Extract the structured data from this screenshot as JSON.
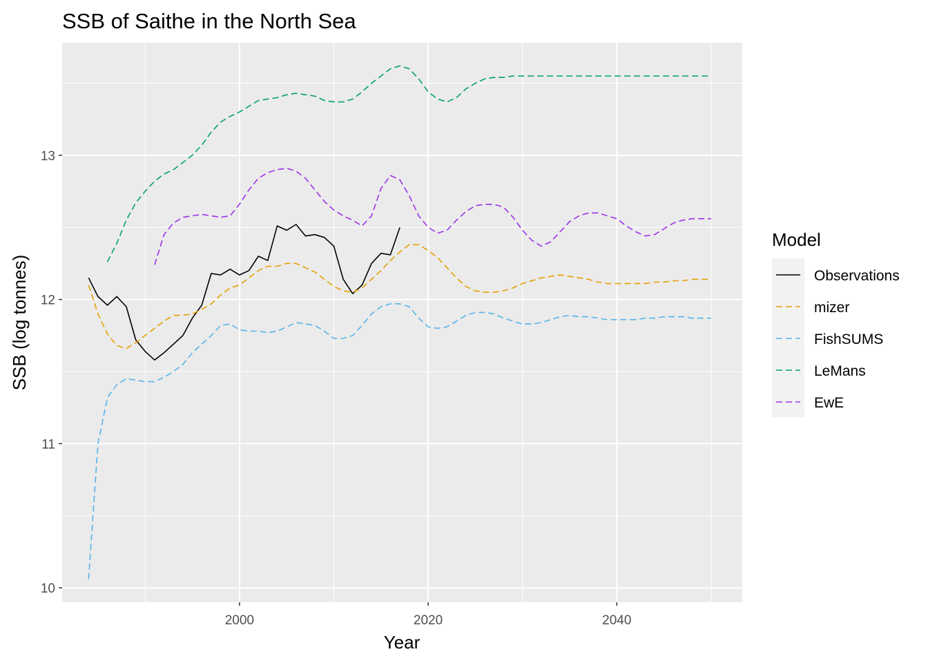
{
  "chart_data": {
    "type": "line",
    "title": "SSB of Saithe in the North Sea",
    "xlabel": "Year",
    "ylabel": "SSB (log tonnes)",
    "xlim": [
      1981.2,
      2053.3
    ],
    "ylim": [
      9.9,
      13.78
    ],
    "xticks": [
      2000,
      2020,
      2040
    ],
    "yticks": [
      10,
      11,
      12,
      13
    ],
    "grid": true,
    "legend": {
      "title": "Model",
      "position": "right"
    },
    "series": [
      {
        "name": "Observations",
        "color": "#000000",
        "dash": "solid",
        "x": [
          1984,
          1985,
          1986,
          1987,
          1988,
          1989,
          1990,
          1991,
          1992,
          1993,
          1994,
          1995,
          1996,
          1997,
          1998,
          1999,
          2000,
          2001,
          2002,
          2003,
          2004,
          2005,
          2006,
          2007,
          2008,
          2009,
          2010,
          2011,
          2012,
          2013,
          2014,
          2015,
          2016,
          2017
        ],
        "y": [
          12.15,
          12.02,
          11.96,
          12.02,
          11.95,
          11.72,
          11.64,
          11.58,
          11.63,
          11.69,
          11.75,
          11.87,
          11.96,
          12.18,
          12.17,
          12.21,
          12.17,
          12.2,
          12.3,
          12.27,
          12.51,
          12.48,
          12.52,
          12.44,
          12.45,
          12.43,
          12.37,
          12.14,
          12.04,
          12.1,
          12.25,
          12.32,
          12.31,
          12.5
        ]
      },
      {
        "name": "mizer",
        "color": "#E69F00",
        "dash": "dashed",
        "x": [
          1984,
          1985,
          1986,
          1987,
          1988,
          1989,
          1990,
          1991,
          1992,
          1993,
          1994,
          1995,
          1996,
          1997,
          1998,
          1999,
          2000,
          2001,
          2002,
          2003,
          2004,
          2005,
          2006,
          2007,
          2008,
          2009,
          2010,
          2011,
          2012,
          2013,
          2014,
          2015,
          2016,
          2017,
          2018,
          2019,
          2020,
          2021,
          2022,
          2023,
          2024,
          2025,
          2026,
          2027,
          2028,
          2029,
          2030,
          2031,
          2032,
          2033,
          2034,
          2035,
          2036,
          2037,
          2038,
          2039,
          2040,
          2041,
          2042,
          2043,
          2044,
          2045,
          2046,
          2047,
          2048,
          2049,
          2050
        ],
        "y": [
          12.1,
          11.9,
          11.76,
          11.68,
          11.66,
          11.7,
          11.75,
          11.8,
          11.85,
          11.89,
          11.89,
          11.9,
          11.93,
          11.97,
          12.03,
          12.08,
          12.1,
          12.15,
          12.2,
          12.23,
          12.23,
          12.25,
          12.25,
          12.22,
          12.19,
          12.14,
          12.09,
          12.06,
          12.05,
          12.08,
          12.14,
          12.2,
          12.27,
          12.33,
          12.38,
          12.38,
          12.34,
          12.29,
          12.22,
          12.15,
          12.09,
          12.06,
          12.05,
          12.05,
          12.06,
          12.08,
          12.11,
          12.13,
          12.15,
          12.16,
          12.17,
          12.16,
          12.15,
          12.14,
          12.12,
          12.11,
          12.11,
          12.11,
          12.11,
          12.11,
          12.12,
          12.12,
          12.13,
          12.13,
          12.14,
          12.14,
          12.14
        ]
      },
      {
        "name": "FishSUMS",
        "color": "#56B4E9",
        "dash": "dashed",
        "x": [
          1984,
          1985,
          1986,
          1987,
          1988,
          1989,
          1990,
          1991,
          1992,
          1993,
          1994,
          1995,
          1996,
          1997,
          1998,
          1999,
          2000,
          2001,
          2002,
          2003,
          2004,
          2005,
          2006,
          2007,
          2008,
          2009,
          2010,
          2011,
          2012,
          2013,
          2014,
          2015,
          2016,
          2017,
          2018,
          2019,
          2020,
          2021,
          2022,
          2023,
          2024,
          2025,
          2026,
          2027,
          2028,
          2029,
          2030,
          2031,
          2032,
          2033,
          2034,
          2035,
          2036,
          2037,
          2038,
          2039,
          2040,
          2041,
          2042,
          2043,
          2044,
          2045,
          2046,
          2047,
          2048,
          2049,
          2050
        ],
        "y": [
          10.06,
          11.0,
          11.32,
          11.41,
          11.45,
          11.44,
          11.43,
          11.43,
          11.46,
          11.5,
          11.55,
          11.63,
          11.69,
          11.75,
          11.82,
          11.83,
          11.79,
          11.78,
          11.78,
          11.77,
          11.78,
          11.81,
          11.84,
          11.83,
          11.82,
          11.78,
          11.73,
          11.73,
          11.75,
          11.82,
          11.9,
          11.95,
          11.97,
          11.97,
          11.95,
          11.87,
          11.81,
          11.8,
          11.81,
          11.85,
          11.89,
          11.91,
          11.91,
          11.9,
          11.87,
          11.85,
          11.83,
          11.83,
          11.84,
          11.86,
          11.88,
          11.89,
          11.88,
          11.88,
          11.87,
          11.86,
          11.86,
          11.86,
          11.86,
          11.87,
          11.87,
          11.88,
          11.88,
          11.88,
          11.87,
          11.87,
          11.87
        ]
      },
      {
        "name": "LeMans",
        "color": "#009E73",
        "dash": "dashed",
        "x": [
          1986,
          1987,
          1988,
          1989,
          1990,
          1991,
          1992,
          1993,
          1994,
          1995,
          1996,
          1997,
          1998,
          1999,
          2000,
          2001,
          2002,
          2003,
          2004,
          2005,
          2006,
          2007,
          2008,
          2009,
          2010,
          2011,
          2012,
          2013,
          2014,
          2015,
          2016,
          2017,
          2018,
          2019,
          2020,
          2021,
          2022,
          2023,
          2024,
          2025,
          2026,
          2027,
          2028,
          2029,
          2030,
          2031,
          2032,
          2033,
          2034,
          2035,
          2036,
          2037,
          2038,
          2039,
          2040,
          2041,
          2042,
          2043,
          2044,
          2045,
          2046,
          2047,
          2048,
          2049,
          2050
        ],
        "y": [
          12.26,
          12.39,
          12.55,
          12.67,
          12.75,
          12.82,
          12.87,
          12.9,
          12.95,
          13.0,
          13.07,
          13.16,
          13.23,
          13.27,
          13.3,
          13.34,
          13.38,
          13.39,
          13.4,
          13.42,
          13.43,
          13.42,
          13.41,
          13.38,
          13.37,
          13.37,
          13.39,
          13.44,
          13.5,
          13.55,
          13.6,
          13.62,
          13.6,
          13.53,
          13.44,
          13.39,
          13.37,
          13.4,
          13.46,
          13.5,
          13.53,
          13.54,
          13.54,
          13.55,
          13.55,
          13.55,
          13.55,
          13.55,
          13.55,
          13.55,
          13.55,
          13.55,
          13.55,
          13.55,
          13.55,
          13.55,
          13.55,
          13.55,
          13.55,
          13.55,
          13.55,
          13.55,
          13.55,
          13.55,
          13.55
        ]
      },
      {
        "name": "EwE",
        "color": "#9B30E8",
        "dash": "dashed",
        "x": [
          1991,
          1992,
          1993,
          1994,
          1995,
          1996,
          1997,
          1998,
          1999,
          2000,
          2001,
          2002,
          2003,
          2004,
          2005,
          2006,
          2007,
          2008,
          2009,
          2010,
          2011,
          2012,
          2013,
          2014,
          2015,
          2016,
          2017,
          2018,
          2019,
          2020,
          2021,
          2022,
          2023,
          2024,
          2025,
          2026,
          2027,
          2028,
          2029,
          2030,
          2031,
          2032,
          2033,
          2034,
          2035,
          2036,
          2037,
          2038,
          2039,
          2040,
          2041,
          2042,
          2043,
          2044,
          2045,
          2046,
          2047,
          2048,
          2049,
          2050
        ],
        "y": [
          12.24,
          12.45,
          12.53,
          12.57,
          12.58,
          12.59,
          12.58,
          12.57,
          12.58,
          12.66,
          12.76,
          12.84,
          12.88,
          12.9,
          12.91,
          12.89,
          12.84,
          12.76,
          12.68,
          12.62,
          12.58,
          12.55,
          12.51,
          12.58,
          12.77,
          12.86,
          12.83,
          12.72,
          12.58,
          12.5,
          12.46,
          12.48,
          12.55,
          12.61,
          12.65,
          12.66,
          12.66,
          12.64,
          12.57,
          12.48,
          12.41,
          12.37,
          12.4,
          12.47,
          12.54,
          12.58,
          12.6,
          12.6,
          12.58,
          12.56,
          12.51,
          12.47,
          12.44,
          12.45,
          12.49,
          12.53,
          12.55,
          12.56,
          12.56,
          12.56
        ]
      }
    ]
  }
}
